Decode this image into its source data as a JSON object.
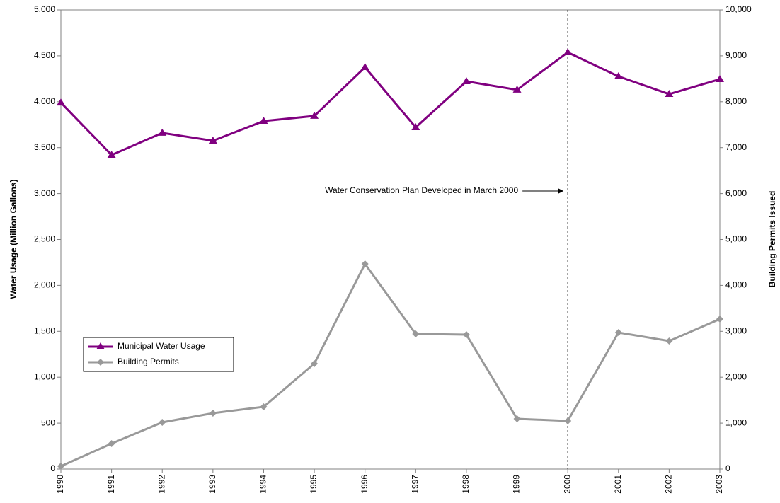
{
  "chart_data": {
    "type": "line",
    "ylabel": "Water Usage (Million Gallons)",
    "y2label": "Building Permits Issued",
    "annotation": "Water Conservation Plan Developed in March 2000",
    "vline": "2000",
    "categories": [
      "1990",
      "1991",
      "1992",
      "1993",
      "1994",
      "1995",
      "1996",
      "1997",
      "1998",
      "1999",
      "2000",
      "2001",
      "2002",
      "2003"
    ],
    "series": [
      {
        "name": "Municipal Water Usage",
        "color": "#800080",
        "marker": "triangle",
        "values": [
          3990,
          3420,
          3660,
          3575,
          3790,
          3845,
          4376,
          3721,
          4222,
          4130,
          4538,
          4276,
          4083,
          4245
        ]
      },
      {
        "name": "Building Permits",
        "color": "#999999",
        "marker": "diamond",
        "axis": "y2",
        "values": [
          62,
          555,
          1017,
          1217,
          1356,
          2296,
          4468,
          2943,
          2928,
          1094,
          1048,
          2974,
          2789,
          3267
        ]
      }
    ],
    "ylim": [
      0,
      5000
    ],
    "yticks": [
      0,
      500,
      {
        "value": 1000,
        "label": "1,000"
      },
      {
        "value": 1500,
        "label": "1,500"
      },
      {
        "value": 2000,
        "label": "2,000"
      },
      {
        "value": 2500,
        "label": "2,500"
      },
      {
        "value": 3000,
        "label": "3,000"
      },
      {
        "value": 3500,
        "label": "3,500"
      },
      {
        "value": 4000,
        "label": "4,000"
      },
      {
        "value": 4500,
        "label": "4,500"
      },
      {
        "value": 5000,
        "label": "5,000"
      }
    ],
    "y2lim": [
      0,
      10000
    ],
    "y2ticks": [
      0,
      {
        "value": 1000,
        "label": "1,000"
      },
      {
        "value": 2000,
        "label": "2,000"
      },
      {
        "value": 3000,
        "label": "3,000"
      },
      {
        "value": 4000,
        "label": "4,000"
      },
      {
        "value": 5000,
        "label": "5,000"
      },
      {
        "value": 6000,
        "label": "6,000"
      },
      {
        "value": 7000,
        "label": "7,000"
      },
      {
        "value": 8000,
        "label": "8,000"
      },
      {
        "value": 9000,
        "label": "9,000"
      },
      {
        "value": 10000,
        "label": "10,000"
      }
    ],
    "legend": "left"
  }
}
